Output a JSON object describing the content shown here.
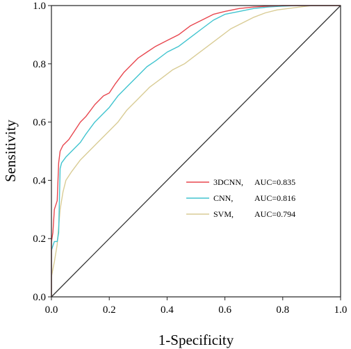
{
  "chart_data": {
    "type": "line",
    "xlabel": "1-Specificity",
    "ylabel": "Sensitivity",
    "xlim": [
      0.0,
      1.0
    ],
    "ylim": [
      0.0,
      1.0
    ],
    "x_ticks": [
      "0.0",
      "0.2",
      "0.4",
      "0.6",
      "0.8",
      "1.0"
    ],
    "y_ticks": [
      "0.0",
      "0.2",
      "0.4",
      "0.6",
      "0.8",
      "1.0"
    ],
    "grid": false,
    "legend_position": "center-right",
    "reference_line": {
      "x": [
        0,
        1
      ],
      "y": [
        0,
        1
      ],
      "color": "#333333"
    },
    "series": [
      {
        "name": "3DCNN,",
        "auc_label": "AUC=0.835",
        "color": "#e8474f",
        "x": [
          0,
          0,
          0.005,
          0.01,
          0.02,
          0.025,
          0.03,
          0.04,
          0.06,
          0.08,
          0.1,
          0.12,
          0.15,
          0.18,
          0.2,
          0.22,
          0.25,
          0.28,
          0.3,
          0.33,
          0.36,
          0.4,
          0.44,
          0.48,
          0.52,
          0.56,
          0.6,
          0.65,
          0.7,
          0.75,
          0.8,
          0.85,
          0.9,
          0.95,
          1.0
        ],
        "y": [
          0,
          0.19,
          0.22,
          0.3,
          0.33,
          0.46,
          0.5,
          0.52,
          0.54,
          0.57,
          0.6,
          0.62,
          0.66,
          0.69,
          0.7,
          0.73,
          0.77,
          0.8,
          0.82,
          0.84,
          0.86,
          0.88,
          0.9,
          0.93,
          0.95,
          0.97,
          0.98,
          0.99,
          0.995,
          0.998,
          1.0,
          1.0,
          1.0,
          1.0,
          1.0
        ]
      },
      {
        "name": "CNN,",
        "auc_label": "AUC=0.816",
        "color": "#40c4cf",
        "x": [
          0,
          0,
          0.01,
          0.02,
          0.025,
          0.03,
          0.035,
          0.05,
          0.07,
          0.1,
          0.12,
          0.15,
          0.18,
          0.2,
          0.23,
          0.26,
          0.3,
          0.33,
          0.36,
          0.4,
          0.44,
          0.48,
          0.52,
          0.56,
          0.6,
          0.65,
          0.7,
          0.75,
          0.8,
          0.85,
          0.9,
          0.95,
          1.0
        ],
        "y": [
          0,
          0.16,
          0.19,
          0.19,
          0.22,
          0.44,
          0.46,
          0.48,
          0.5,
          0.53,
          0.56,
          0.6,
          0.63,
          0.65,
          0.69,
          0.72,
          0.76,
          0.79,
          0.81,
          0.84,
          0.86,
          0.89,
          0.92,
          0.95,
          0.97,
          0.98,
          0.99,
          0.995,
          0.998,
          1.0,
          1.0,
          1.0,
          1.0
        ]
      },
      {
        "name": "SVM,",
        "auc_label": "AUC=0.794",
        "color": "#d9cc95",
        "x": [
          0,
          0,
          0.01,
          0.02,
          0.03,
          0.04,
          0.05,
          0.07,
          0.1,
          0.13,
          0.16,
          0.2,
          0.23,
          0.26,
          0.3,
          0.34,
          0.38,
          0.42,
          0.46,
          0.5,
          0.54,
          0.58,
          0.62,
          0.66,
          0.7,
          0.74,
          0.78,
          0.82,
          0.86,
          0.9,
          0.95,
          1.0
        ],
        "y": [
          0,
          0.07,
          0.12,
          0.18,
          0.3,
          0.36,
          0.4,
          0.43,
          0.47,
          0.5,
          0.53,
          0.57,
          0.6,
          0.64,
          0.68,
          0.72,
          0.75,
          0.78,
          0.8,
          0.83,
          0.86,
          0.89,
          0.92,
          0.94,
          0.96,
          0.975,
          0.985,
          0.99,
          0.995,
          1.0,
          1.0,
          1.0
        ]
      }
    ]
  }
}
